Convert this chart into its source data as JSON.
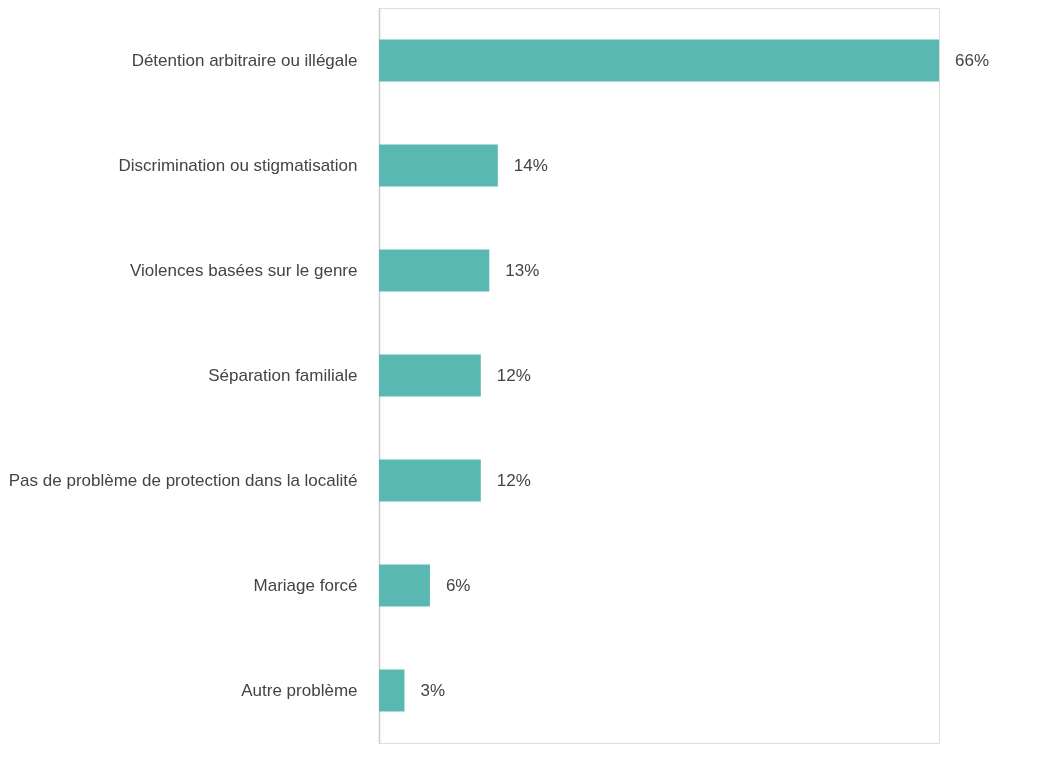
{
  "chart_data": {
    "type": "bar",
    "orientation": "horizontal",
    "categories": [
      "Détention arbitraire ou illégale",
      "Discrimination ou stigmatisation",
      "Violences basées sur le genre",
      "Séparation familiale",
      "Pas de problème de protection dans la localité",
      "Mariage forcé",
      "Autre problème"
    ],
    "values": [
      66,
      14,
      13,
      12,
      12,
      6,
      3
    ],
    "value_labels": [
      "66%",
      "14%",
      "13%",
      "12%",
      "12%",
      "6%",
      "3%"
    ],
    "color": "#5ab8b3",
    "grid": false
  }
}
